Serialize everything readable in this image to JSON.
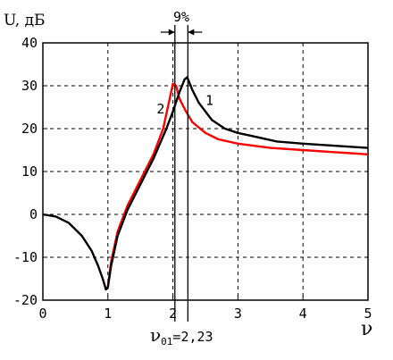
{
  "chart_data": {
    "type": "line",
    "ylabel": "U, дБ",
    "xlabel": "ν",
    "xlim": [
      0,
      5
    ],
    "ylim": [
      -20,
      40
    ],
    "grid": true,
    "x_ticks": [
      "0",
      "1",
      "2",
      "3",
      "4",
      "5"
    ],
    "y_ticks": [
      "-20",
      "-10",
      "0",
      "10",
      "20",
      "30",
      "40"
    ],
    "annotations": {
      "percent": "9%",
      "resonance_label_main": "ν",
      "resonance_label_sub": "01",
      "resonance_label_value": "=2,23"
    },
    "markers": [
      2.03,
      2.23
    ],
    "series": [
      {
        "name": "1",
        "color": "#000000",
        "x": [
          0,
          0.2,
          0.4,
          0.6,
          0.75,
          0.85,
          0.92,
          0.97,
          1.0,
          1.05,
          1.15,
          1.3,
          1.5,
          1.7,
          1.9,
          2.0,
          2.1,
          2.18,
          2.22,
          2.3,
          2.4,
          2.6,
          2.8,
          3.0,
          3.3,
          3.6,
          4.0,
          4.5,
          5.0
        ],
        "y": [
          0,
          -0.5,
          -2,
          -5,
          -8.5,
          -12,
          -15,
          -17.5,
          -17,
          -12,
          -5,
          1,
          7,
          13,
          20,
          24,
          28.5,
          31.5,
          32,
          29,
          26,
          22,
          20,
          19,
          18,
          17,
          16.5,
          16,
          15.5
        ]
      },
      {
        "name": "2",
        "color": "#ff0000",
        "x": [
          0.95,
          1.0,
          1.05,
          1.15,
          1.3,
          1.5,
          1.7,
          1.85,
          1.95,
          2.0,
          2.05,
          2.1,
          2.2,
          2.3,
          2.5,
          2.7,
          3.0,
          3.5,
          4.0,
          4.5,
          5.0
        ],
        "y": [
          -17.5,
          -17,
          -11,
          -4,
          2,
          8,
          14,
          20,
          27,
          30.5,
          30,
          27,
          24,
          21.5,
          19,
          17.5,
          16.5,
          15.5,
          15,
          14.5,
          14
        ]
      }
    ],
    "series_labels": [
      {
        "text": "1",
        "x": 2.5,
        "y": 25.5
      },
      {
        "text": "2",
        "x": 1.75,
        "y": 23.5
      }
    ]
  }
}
